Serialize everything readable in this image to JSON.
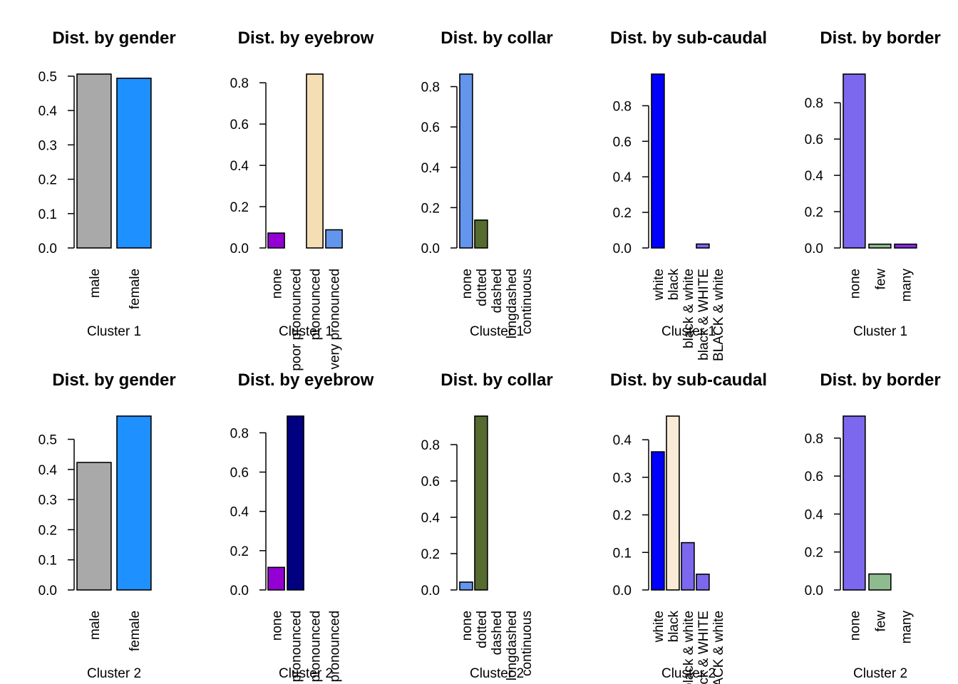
{
  "chart_data": [
    {
      "type": "bar",
      "title": "Dist. by gender",
      "xlabel": "Cluster 1",
      "categories": [
        "male",
        "female"
      ],
      "values": [
        0.506,
        0.494
      ],
      "colors": [
        "#A9A9A9",
        "#1E90FF"
      ],
      "ylim": [
        0,
        0.506
      ],
      "yticks": [
        "0.0",
        "0.1",
        "0.2",
        "0.3",
        "0.4",
        "0.5"
      ]
    },
    {
      "type": "bar",
      "title": "Dist. by eyebrow",
      "xlabel": "Cluster 1",
      "categories": [
        "none",
        "poor pronounced",
        "pronounced",
        "very pronounced"
      ],
      "values": [
        0.072,
        0.0,
        0.842,
        0.088
      ],
      "colors": [
        "#9400D3",
        "#000080",
        "#F5DEB3",
        "#6495ED"
      ],
      "ylim": [
        0,
        0.842
      ],
      "yticks": [
        "0.0",
        "0.2",
        "0.4",
        "0.6",
        "0.8"
      ]
    },
    {
      "type": "bar",
      "title": "Dist. by collar",
      "xlabel": "Cluster 1",
      "categories": [
        "none",
        "dotted",
        "dashed",
        "longdashed",
        "continuous"
      ],
      "values": [
        0.862,
        0.138,
        0.0,
        0.0,
        0.0
      ],
      "colors": [
        "#6495ED",
        "#556B2F",
        "#556B2F",
        "#556B2F",
        "#556B2F"
      ],
      "ylim": [
        0,
        0.862
      ],
      "yticks": [
        "0.0",
        "0.2",
        "0.4",
        "0.6",
        "0.8"
      ]
    },
    {
      "type": "bar",
      "title": "Dist. by sub-caudal",
      "xlabel": "Cluster 1",
      "categories": [
        "white",
        "black",
        "black & white",
        "black & WHITE",
        "BLACK & white"
      ],
      "values": [
        0.978,
        0.0,
        0.0,
        0.022,
        0.0
      ],
      "colors": [
        "#0000FF",
        "#FAEBD7",
        "#7B68EE",
        "#7B68EE",
        "#7B68EE"
      ],
      "ylim": [
        0,
        0.978
      ],
      "yticks": [
        "0.0",
        "0.2",
        "0.4",
        "0.6",
        "0.8"
      ]
    },
    {
      "type": "bar",
      "title": "Dist. by border",
      "xlabel": "Cluster 1",
      "categories": [
        "none",
        "few",
        "many"
      ],
      "values": [
        0.958,
        0.021,
        0.021
      ],
      "colors": [
        "#7B68EE",
        "#8FBC8F",
        "#8A2BE2"
      ],
      "ylim": [
        0,
        0.958
      ],
      "yticks": [
        "0.0",
        "0.2",
        "0.4",
        "0.6",
        "0.8"
      ]
    },
    {
      "type": "bar",
      "title": "Dist. by gender",
      "xlabel": "Cluster 2",
      "categories": [
        "male",
        "female"
      ],
      "values": [
        0.423,
        0.577
      ],
      "colors": [
        "#A9A9A9",
        "#1E90FF"
      ],
      "ylim": [
        0,
        0.577
      ],
      "yticks": [
        "0.0",
        "0.1",
        "0.2",
        "0.3",
        "0.4",
        "0.5"
      ]
    },
    {
      "type": "bar",
      "title": "Dist. by eyebrow",
      "xlabel": "Cluster 2",
      "categories": [
        "none",
        "poor pronounced",
        "pronounced",
        "very pronounced"
      ],
      "values": [
        0.115,
        0.885,
        0.0,
        0.0
      ],
      "colors": [
        "#9400D3",
        "#000080",
        "#F5DEB3",
        "#6495ED"
      ],
      "ylim": [
        0,
        0.885
      ],
      "yticks": [
        "0.0",
        "0.2",
        "0.4",
        "0.6",
        "0.8"
      ]
    },
    {
      "type": "bar",
      "title": "Dist. by collar",
      "xlabel": "Cluster 2",
      "categories": [
        "none",
        "dotted",
        "dashed",
        "longdashed",
        "continuous"
      ],
      "values": [
        0.043,
        0.957,
        0.0,
        0.0,
        0.0
      ],
      "colors": [
        "#6495ED",
        "#556B2F",
        "#556B2F",
        "#556B2F",
        "#556B2F"
      ],
      "ylim": [
        0,
        0.957
      ],
      "yticks": [
        "0.0",
        "0.2",
        "0.4",
        "0.6",
        "0.8"
      ]
    },
    {
      "type": "bar",
      "title": "Dist. by sub-caudal",
      "xlabel": "Cluster 2",
      "categories": [
        "white",
        "black",
        "black & white",
        "black & WHITE",
        "BLACK & white"
      ],
      "values": [
        0.368,
        0.463,
        0.126,
        0.042,
        0.0
      ],
      "colors": [
        "#0000FF",
        "#FAEBD7",
        "#7B68EE",
        "#7B68EE",
        "#7B68EE"
      ],
      "ylim": [
        0,
        0.463
      ],
      "yticks": [
        "0.0",
        "0.1",
        "0.2",
        "0.3",
        "0.4"
      ]
    },
    {
      "type": "bar",
      "title": "Dist. by border",
      "xlabel": "Cluster 2",
      "categories": [
        "none",
        "few",
        "many"
      ],
      "values": [
        0.916,
        0.084,
        0.0
      ],
      "colors": [
        "#7B68EE",
        "#8FBC8F",
        "#8A2BE2"
      ],
      "ylim": [
        0,
        0.916
      ],
      "yticks": [
        "0.0",
        "0.2",
        "0.4",
        "0.6",
        "0.8"
      ]
    }
  ]
}
